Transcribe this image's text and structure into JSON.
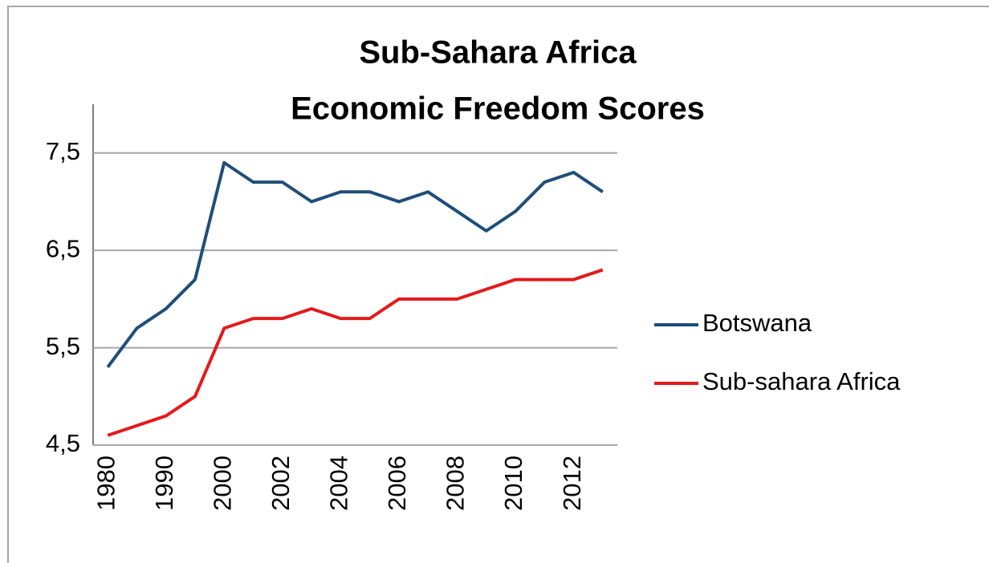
{
  "chart_data": {
    "type": "line",
    "title": [
      "Sub-Sahara Africa",
      "Economic Freedom Scores"
    ],
    "categories": [
      "1980",
      null,
      "1990",
      null,
      "2000",
      null,
      "2002",
      null,
      "2004",
      null,
      "2006",
      null,
      "2008",
      null,
      "2010",
      null,
      "2012",
      null
    ],
    "series": [
      {
        "name": "Botswana",
        "color": "#1f4e79",
        "values": [
          5.3,
          5.7,
          5.9,
          6.2,
          7.4,
          7.2,
          7.2,
          7.0,
          7.1,
          7.1,
          7.0,
          7.1,
          6.9,
          6.7,
          6.9,
          7.2,
          7.3,
          7.1
        ]
      },
      {
        "name": "Sub-sahara Africa",
        "color": "#e31a1c",
        "values": [
          4.6,
          4.7,
          4.8,
          5.0,
          5.7,
          5.8,
          5.8,
          5.9,
          5.8,
          5.8,
          6.0,
          6.0,
          6.0,
          6.1,
          6.2,
          6.2,
          6.2,
          6.3
        ]
      }
    ],
    "ylim": [
      4.5,
      8
    ],
    "yticks": [
      {
        "value": 4.5,
        "label": "4,5"
      },
      {
        "value": 5.5,
        "label": "5,5"
      },
      {
        "value": 6.5,
        "label": "6,5"
      },
      {
        "value": 7.5,
        "label": "7,5"
      }
    ],
    "grid": true,
    "legend": "right"
  }
}
